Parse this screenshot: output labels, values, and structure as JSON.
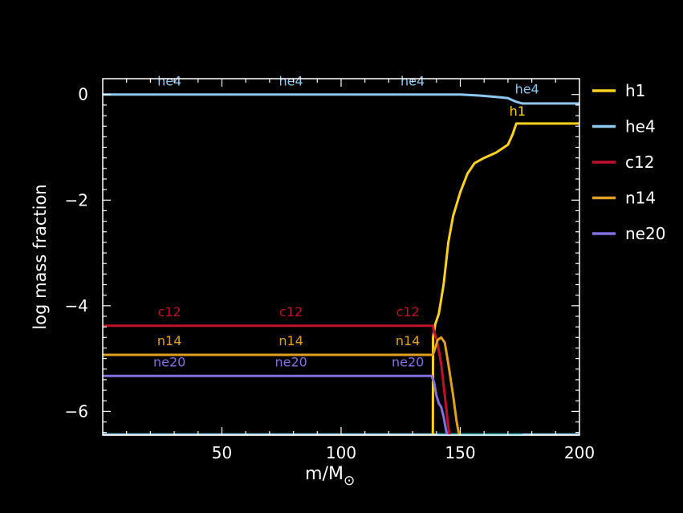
{
  "chart_data": {
    "type": "line",
    "title": "",
    "xlabel": "m/M",
    "xlabel_subscript": "⊙",
    "ylabel": "log mass fraction",
    "xlim": [
      0,
      200
    ],
    "ylim": [
      -6.45,
      0.3
    ],
    "x_ticks": [
      50,
      100,
      150,
      200
    ],
    "x_tick_labels": [
      "50",
      "100",
      "150",
      "200"
    ],
    "y_ticks": [
      0,
      -2,
      -4,
      -6
    ],
    "y_tick_labels": [
      "0",
      "−2",
      "−4",
      "−6"
    ],
    "grid": false,
    "legend_position": "right",
    "series": [
      {
        "name": "h1",
        "color": "#FFD21F",
        "points": [
          [
            138.5,
            -6.45
          ],
          [
            138.6,
            -4.6
          ],
          [
            139.5,
            -4.35
          ],
          [
            141,
            -4.15
          ],
          [
            143,
            -3.6
          ],
          [
            145,
            -2.8
          ],
          [
            147,
            -2.3
          ],
          [
            150,
            -1.85
          ],
          [
            153,
            -1.5
          ],
          [
            156,
            -1.3
          ],
          [
            160,
            -1.2
          ],
          [
            165,
            -1.1
          ],
          [
            170,
            -0.95
          ],
          [
            172,
            -0.75
          ],
          [
            173.5,
            -0.55
          ],
          [
            200,
            -0.55
          ]
        ],
        "labels": [
          {
            "text": "h1",
            "x": 174,
            "y": -0.4
          }
        ]
      },
      {
        "name": "he4",
        "color": "#8EC8F0",
        "points": [
          [
            0,
            0
          ],
          [
            150,
            0
          ],
          [
            158,
            -0.02
          ],
          [
            166,
            -0.05
          ],
          [
            170,
            -0.07
          ],
          [
            173,
            -0.13
          ],
          [
            176,
            -0.17
          ],
          [
            200,
            -0.17
          ]
        ],
        "labels": [
          {
            "text": "he4",
            "x": 28,
            "y": 0.17
          },
          {
            "text": "he4",
            "x": 79,
            "y": 0.17
          },
          {
            "text": "he4",
            "x": 130,
            "y": 0.17
          },
          {
            "text": "he4",
            "x": 178,
            "y": 0.02
          }
        ]
      },
      {
        "name": "c12",
        "color": "#C0102A",
        "points": [
          [
            0,
            -4.38
          ],
          [
            138.5,
            -4.38
          ],
          [
            139,
            -4.5
          ],
          [
            140,
            -4.62
          ],
          [
            141,
            -4.85
          ],
          [
            142,
            -5.1
          ],
          [
            143,
            -5.5
          ],
          [
            144,
            -5.9
          ],
          [
            145,
            -6.3
          ],
          [
            145.5,
            -6.45
          ]
        ],
        "labels": [
          {
            "text": "c12",
            "x": 28,
            "y": -4.2
          },
          {
            "text": "c12",
            "x": 79,
            "y": -4.2
          },
          {
            "text": "c12",
            "x": 128,
            "y": -4.2
          }
        ]
      },
      {
        "name": "n14",
        "color": "#E0A020",
        "points": [
          [
            0,
            -4.93
          ],
          [
            138.5,
            -4.93
          ],
          [
            139.5,
            -4.8
          ],
          [
            140.5,
            -4.65
          ],
          [
            142,
            -4.6
          ],
          [
            143.5,
            -4.7
          ],
          [
            145,
            -5.1
          ],
          [
            147,
            -5.7
          ],
          [
            148.5,
            -6.2
          ],
          [
            149.5,
            -6.45
          ]
        ],
        "labels": [
          {
            "text": "n14",
            "x": 28,
            "y": -4.75
          },
          {
            "text": "n14",
            "x": 79,
            "y": -4.75
          },
          {
            "text": "n14",
            "x": 128,
            "y": -4.75
          }
        ]
      },
      {
        "name": "ne20",
        "color": "#8070E0",
        "points": [
          [
            0,
            -5.33
          ],
          [
            138,
            -5.33
          ],
          [
            139,
            -5.45
          ],
          [
            140,
            -5.7
          ],
          [
            141,
            -5.85
          ],
          [
            142,
            -5.92
          ],
          [
            143,
            -6.1
          ],
          [
            144,
            -6.35
          ],
          [
            144.5,
            -6.45
          ]
        ],
        "labels": [
          {
            "text": "ne20",
            "x": 28,
            "y": -5.15
          },
          {
            "text": "ne20",
            "x": 79,
            "y": -5.15
          },
          {
            "text": "ne20",
            "x": 128,
            "y": -5.15
          }
        ]
      }
    ],
    "bottom_lines": [
      {
        "color": "#8EC8F0",
        "points": [
          [
            0,
            -6.44
          ],
          [
            200,
            -6.44
          ]
        ]
      },
      {
        "color": "#20A0A0",
        "points": [
          [
            140,
            -6.44
          ],
          [
            176,
            -6.44
          ]
        ]
      }
    ]
  }
}
